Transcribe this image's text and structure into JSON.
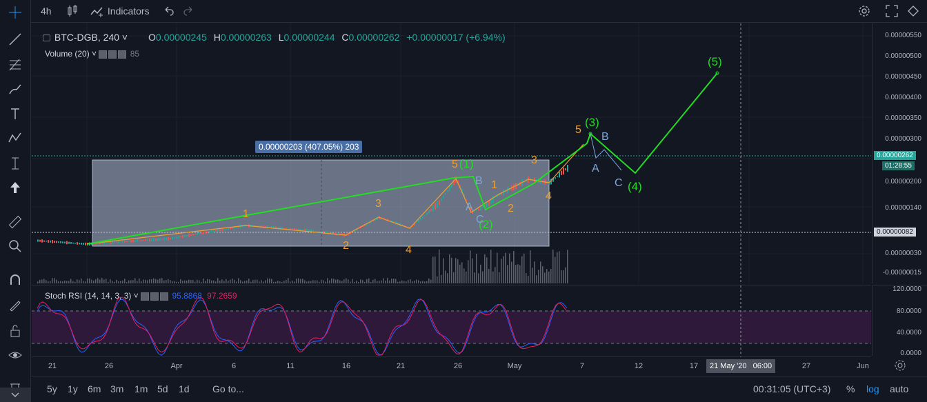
{
  "toolbar": {
    "interval": "4h",
    "indicators_label": "Indicators"
  },
  "legend": {
    "symbol": "BTC-DGB, 240",
    "o_label": "O",
    "o_value": "0.00000245",
    "h_label": "H",
    "h_value": "0.00000263",
    "l_label": "L",
    "l_value": "0.00000244",
    "c_label": "C",
    "c_value": "0.00000262",
    "change": "+0.00000017 (+6.94%)",
    "volume_label": "Volume (20)",
    "volume_value": "85",
    "rsi_label": "Stoch RSI (14, 14, 3, 3)",
    "rsi_k": "95.8868",
    "rsi_d": "97.2659"
  },
  "measure_label": "0.00000203 (407.05%) 203",
  "price_scale": {
    "ticks": [
      "0.00000550",
      "0.00000500",
      "0.00000450",
      "0.00000400",
      "0.00000350",
      "0.00000300",
      "0.00000200",
      "0.00000140",
      "0.00000030",
      "-0.00000015"
    ],
    "current_price": "0.00000262",
    "countdown": "01:28:55",
    "range_low": "0.00000082"
  },
  "rsi_scale": {
    "ticks": [
      "120.0000",
      "80.0000",
      "40.0000",
      "0.0000"
    ]
  },
  "time_axis": {
    "ticks": [
      "21",
      "26",
      "Apr",
      "6",
      "11",
      "16",
      "21",
      "26",
      "May",
      "7",
      "12",
      "17",
      "27",
      "Jun"
    ],
    "crosshair_label": "21 May '20",
    "crosshair_time": "06:00"
  },
  "waves": {
    "minor": [
      "1",
      "2",
      "3",
      "4",
      "5",
      "1",
      "2",
      "3",
      "4",
      "5"
    ],
    "major": [
      "(1)",
      "(2)",
      "(3)",
      "(4)",
      "(5)"
    ],
    "corrective": [
      "A",
      "B",
      "C",
      "A",
      "B",
      "C"
    ]
  },
  "bottombar": {
    "ranges": [
      "5y",
      "1y",
      "6m",
      "3m",
      "1m",
      "5d",
      "1d"
    ],
    "goto": "Go to...",
    "clock": "00:31:05 (UTC+3)",
    "percent": "%",
    "log": "log",
    "auto": "auto"
  },
  "colors": {
    "background": "#131722",
    "up": "#26a69a",
    "down": "#ef5350",
    "wave_minor": "#f0a030",
    "wave_major": "#22dd22",
    "corrective": "#7fa6d8"
  }
}
